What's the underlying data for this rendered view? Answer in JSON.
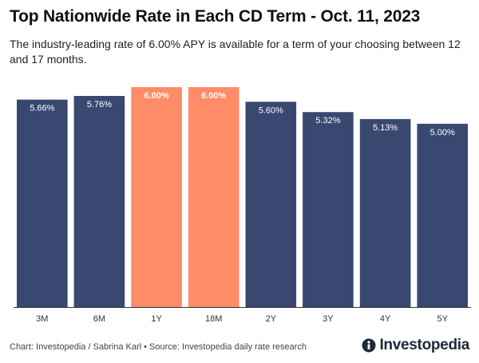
{
  "header": {
    "title": "Top Nationwide Rate in Each CD Term - Oct. 11, 2023",
    "subtitle": "The industry-leading rate of 6.00% APY is available for a term of your choosing between 12 and 17 months."
  },
  "footer": {
    "source": "Chart: Investopedia / Sabrina Karl • Source: Investopedia daily rate research",
    "logo_text": "Investopedia"
  },
  "colors": {
    "bar_default": "#394870",
    "bar_highlight": "#ff8b67",
    "label_text": "#ffffff",
    "axis": "#333333"
  },
  "chart_data": {
    "type": "bar",
    "categories": [
      "3M",
      "6M",
      "1Y",
      "18M",
      "2Y",
      "3Y",
      "4Y",
      "5Y"
    ],
    "values": [
      5.66,
      5.76,
      6.0,
      6.0,
      5.6,
      5.32,
      5.13,
      5.0
    ],
    "data_labels": [
      "5.66%",
      "5.76%",
      "6.00%",
      "6.00%",
      "5.60%",
      "5.32%",
      "5.13%",
      "5.00%"
    ],
    "highlighted": [
      false,
      false,
      true,
      true,
      false,
      false,
      false,
      false
    ],
    "ylim": [
      0,
      6.0
    ],
    "grid": false,
    "legend": "none",
    "xlabel": "",
    "ylabel": ""
  }
}
